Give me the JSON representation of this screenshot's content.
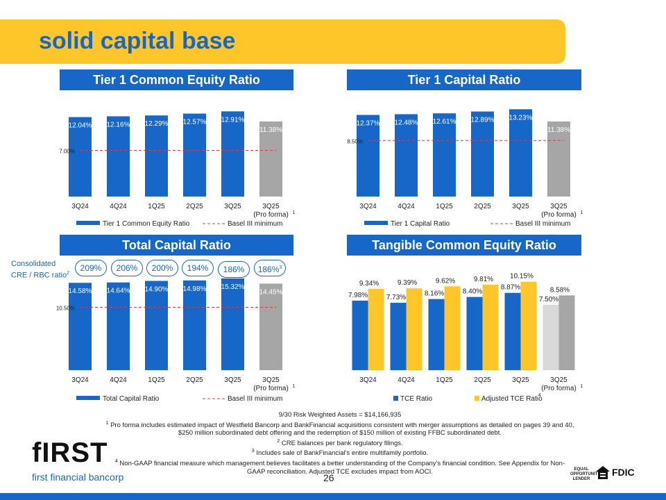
{
  "page": {
    "title": "solid capital base",
    "page_number": "26",
    "logo": {
      "word": "fIRST",
      "sub": "first financial bancorp"
    },
    "badges": {
      "equal": [
        "EQUAL",
        "OPPORTUNITY",
        "LENDER"
      ],
      "fdic": "FDIC"
    }
  },
  "cre": {
    "label_line1": "Consolidated",
    "label_line2": "CRE / RBC ratio",
    "label_sup": "2",
    "values": [
      "209%",
      "206%",
      "200%",
      "194%",
      "186%",
      "186%"
    ],
    "last_sup": "3"
  },
  "footnotes": {
    "rwa": "9/30 Risk Weighted Assets = $14,166,935",
    "n1_sup": "1",
    "n1": " Pro forma includes estimated impact of Westfield Bancorp and BankFinancial acquisitions consistent with merger assumptions as detailed on pages 39 and 40,",
    "n1b": "$250 million subordinated debt offering and the redemption of $150 million of existing FFBC subordinated debt.",
    "n2_sup": "2",
    "n2": " CRE balances per bank regulatory filings.",
    "n3_sup": "3",
    "n3": " Includes sale of BankFinancial's entire multifamily portfolio.",
    "n4_sup": "4",
    "n4": " Non-GAAP financial measure which management believes facilitates a better understanding of the Company's financial condition.  See Appendix for Non-",
    "n4b": "GAAP reconciliation.  Adjusted TCE excludes impact from AOCI."
  },
  "colors": {
    "blue": "#1767c9",
    "gold": "#ffc629",
    "gray": "#a6a6a6",
    "light_gray": "#d9d9d9",
    "red": "#e03c3c"
  },
  "chart_data": [
    {
      "type": "bar",
      "title": "Tier 1 Common Equity Ratio",
      "categories": [
        "3Q24",
        "4Q24",
        "1Q25",
        "2Q25",
        "3Q25",
        "3Q25"
      ],
      "category_sub": [
        "",
        "",
        "",
        "",
        "",
        "(Pro forma)"
      ],
      "sub_sup": "1",
      "values": [
        12.04,
        12.16,
        12.29,
        12.57,
        12.91,
        11.38
      ],
      "labels": [
        "12.04%",
        "12.16%",
        "12.29%",
        "12.57%",
        "12.91%",
        "11.38%"
      ],
      "threshold": 7.0,
      "threshold_label": "7.00%",
      "ylim": [
        0,
        14
      ],
      "legend": [
        "Tier 1 Common Equity Ratio",
        "Basel III minimum"
      ]
    },
    {
      "type": "bar",
      "title": "Tier 1 Capital Ratio",
      "categories": [
        "3Q24",
        "4Q24",
        "1Q25",
        "2Q25",
        "3Q25",
        "3Q25"
      ],
      "category_sub": [
        "",
        "",
        "",
        "",
        "",
        "(Pro forma)"
      ],
      "sub_sup": "1",
      "values": [
        12.37,
        12.48,
        12.61,
        12.89,
        13.23,
        11.38
      ],
      "labels": [
        "12.37%",
        "12.48%",
        "12.61%",
        "12.89%",
        "13.23%",
        "11.38%"
      ],
      "threshold": 8.5,
      "threshold_label": "8.50%",
      "ylim": [
        0,
        14
      ],
      "legend": [
        "Tier 1 Capital Ratio",
        "Basel III minimum"
      ]
    },
    {
      "type": "bar",
      "title": "Total Capital Ratio",
      "categories": [
        "3Q24",
        "4Q24",
        "1Q25",
        "2Q25",
        "3Q25",
        "3Q25"
      ],
      "category_sub": [
        "",
        "",
        "",
        "",
        "",
        "(Pro forma)"
      ],
      "sub_sup": "1",
      "values": [
        14.58,
        14.64,
        14.9,
        14.98,
        15.32,
        14.45
      ],
      "labels": [
        "14.58%",
        "14.64%",
        "14.90%",
        "14.98%",
        "15.32%",
        "14.45%"
      ],
      "threshold": 10.5,
      "threshold_label": "10.50%",
      "ylim": [
        0,
        16
      ],
      "legend": [
        "Total Capital Ratio",
        "Basel III minimum"
      ]
    },
    {
      "type": "bar",
      "title": "Tangible Common Equity Ratio",
      "categories": [
        "3Q24",
        "4Q24",
        "1Q25",
        "2Q25",
        "3Q25",
        "3Q25"
      ],
      "category_sub": [
        "",
        "",
        "",
        "",
        "",
        "(Pro forma)"
      ],
      "sub_sup": "1",
      "series": [
        {
          "name": "TCE Ratio",
          "values": [
            7.98,
            7.73,
            8.16,
            8.4,
            8.87,
            7.5
          ],
          "labels": [
            "7.98%",
            "7.73%",
            "8.16%",
            "8.40%",
            "8.87%",
            "7.50%"
          ]
        },
        {
          "name": "Adjusted TCE Ratio",
          "values": [
            9.34,
            9.39,
            9.62,
            9.81,
            10.15,
            8.58
          ],
          "labels": [
            "9.34%",
            "9.39%",
            "9.62%",
            "9.81%",
            "10.15%",
            "8.58%"
          ]
        }
      ],
      "legend_sup": "4",
      "ylim": [
        0,
        11
      ]
    }
  ]
}
